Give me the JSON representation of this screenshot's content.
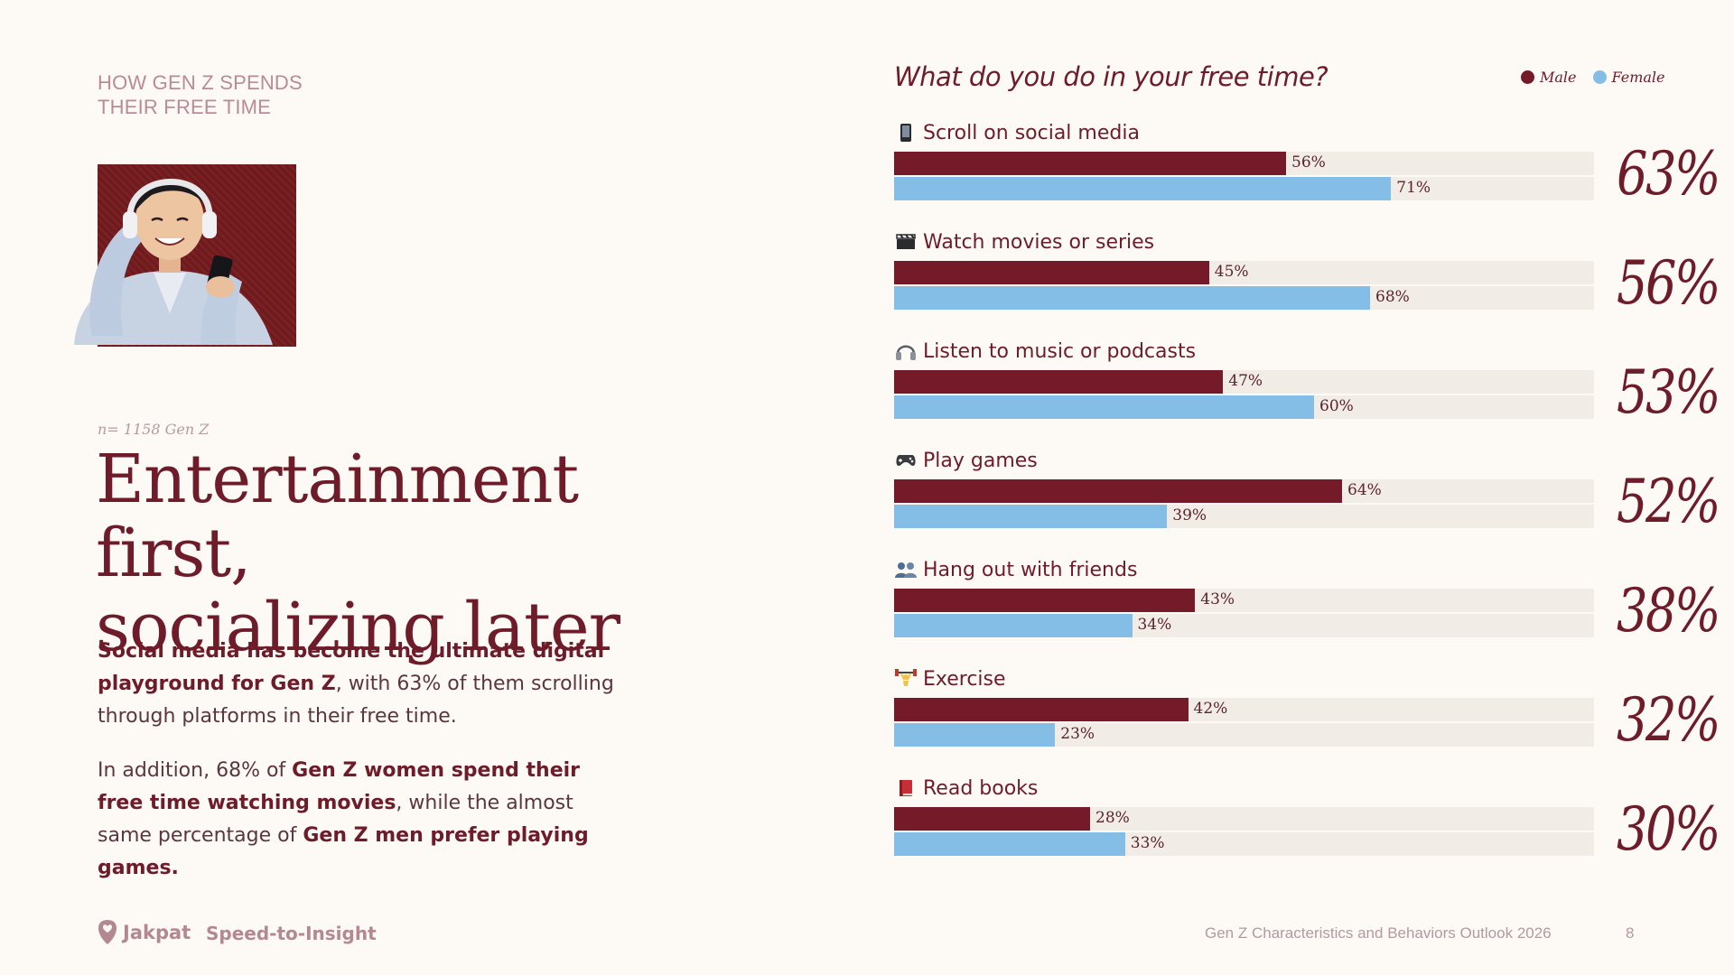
{
  "kicker": {
    "line1": "HOW GEN Z SPENDS",
    "line2": "THEIR FREE TIME"
  },
  "sample_note": "n= 1158 Gen Z",
  "headline": {
    "line1": "Entertainment first,",
    "line2": "socializing later"
  },
  "body": {
    "p1_bold": "Social media has become the ultimate digital playground for Gen Z",
    "p1_rest": ", with 63% of them scrolling through platforms in their free time.",
    "p2_a": "In addition, 68% of ",
    "p2_bold1": "Gen Z women spend their free time watching movies",
    "p2_b": ", while the almost same percentage of ",
    "p2_bold2": "Gen Z men prefer playing games."
  },
  "footer": {
    "brand": "Jakpat",
    "tagline": "Speed-to-Insight",
    "report_title": "Gen Z Characteristics and Behaviors Outlook 2026",
    "page_number": "8"
  },
  "colors": {
    "male": "#751a28",
    "female": "#84bde6",
    "accent": "#6e1c2a"
  },
  "chart_data": {
    "type": "bar",
    "orientation": "horizontal",
    "title": "What do you do in your free time?",
    "legend": [
      "Male",
      "Female"
    ],
    "xlim": [
      0,
      100
    ],
    "unit": "%",
    "categories": [
      "Scroll  on social media",
      "Watch movies or series",
      "Listen to music or podcasts",
      "Play games",
      "Hang out with friends",
      "Exercise",
      "Read books"
    ],
    "icons": [
      "phone-icon",
      "clapperboard-icon",
      "headphones-icon",
      "gamepad-icon",
      "people-icon",
      "weightlifter-icon",
      "book-icon"
    ],
    "series": [
      {
        "name": "Male",
        "values": [
          56,
          45,
          47,
          64,
          43,
          42,
          28
        ]
      },
      {
        "name": "Female",
        "values": [
          71,
          68,
          60,
          39,
          34,
          23,
          33
        ]
      }
    ],
    "value_labels": {
      "Male": [
        "56%",
        "45%",
        "47%",
        "64%",
        "43%",
        "42%",
        "28%"
      ],
      "Female": [
        "71%",
        "68%",
        "60%",
        "39%",
        "34%",
        "23%",
        "33%"
      ]
    },
    "totals": [
      "63%",
      "56%",
      "53%",
      "52%",
      "38%",
      "32%",
      "30%"
    ]
  }
}
